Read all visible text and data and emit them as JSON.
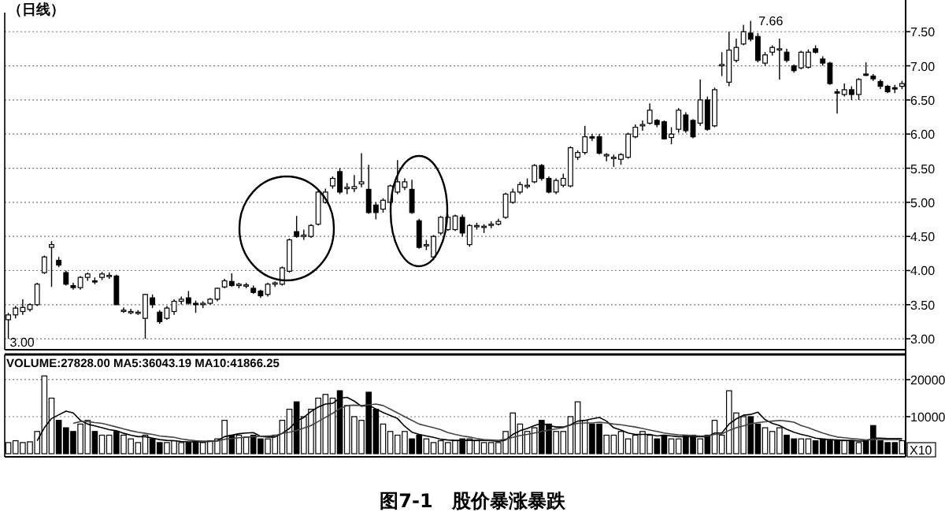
{
  "chart_data": [
    {
      "type": "candlestick",
      "title": "（日线）",
      "categories": [
        null,
        null,
        null,
        null,
        null,
        null,
        null,
        null,
        null,
        null,
        null,
        null,
        null,
        null,
        null,
        null,
        null,
        null,
        null,
        null,
        null,
        null,
        null,
        null,
        null,
        null,
        null,
        null,
        null,
        null,
        null,
        null,
        null,
        null,
        null,
        null,
        null,
        null,
        null,
        null,
        null,
        null,
        null,
        null,
        null,
        null,
        null,
        null,
        null,
        null,
        null,
        null,
        null,
        null,
        null,
        null,
        null,
        null,
        null,
        null,
        null,
        null,
        null,
        null,
        null,
        null,
        null,
        null,
        null,
        null,
        null,
        null,
        null,
        null,
        null,
        null,
        null,
        null,
        null,
        null,
        null,
        null,
        null,
        null,
        null,
        null,
        null,
        null,
        null,
        null,
        null,
        null,
        null,
        null,
        null,
        null,
        null,
        null,
        null,
        null,
        null,
        null,
        null,
        null,
        null,
        null,
        null,
        null,
        null,
        null,
        null,
        null,
        null,
        null,
        null,
        null,
        null,
        null,
        null,
        null,
        null,
        null,
        null,
        null,
        null
      ],
      "ohlc": [
        [
          3.28,
          3.38,
          3.0,
          3.35
        ],
        [
          3.35,
          3.48,
          3.3,
          3.45
        ],
        [
          3.4,
          3.58,
          3.35,
          3.46
        ],
        [
          3.43,
          3.52,
          3.4,
          3.5
        ],
        [
          3.5,
          3.82,
          3.48,
          3.8
        ],
        [
          3.97,
          4.22,
          3.95,
          4.2
        ],
        [
          4.34,
          4.43,
          3.76,
          4.38
        ],
        [
          4.15,
          4.2,
          4.05,
          4.08
        ],
        [
          3.97,
          4.0,
          3.78,
          3.8
        ],
        [
          3.78,
          3.82,
          3.72,
          3.75
        ],
        [
          3.75,
          3.92,
          3.72,
          3.9
        ],
        [
          3.9,
          3.97,
          3.85,
          3.95
        ],
        [
          3.85,
          3.9,
          3.8,
          3.84
        ],
        [
          3.9,
          3.98,
          3.86,
          3.95
        ],
        [
          3.92,
          3.97,
          3.88,
          3.93
        ],
        [
          3.92,
          3.94,
          3.5,
          3.5
        ],
        [
          3.42,
          3.46,
          3.38,
          3.42
        ],
        [
          3.4,
          3.44,
          3.36,
          3.4
        ],
        [
          3.38,
          3.42,
          3.35,
          3.39
        ],
        [
          3.3,
          3.66,
          3.0,
          3.65
        ],
        [
          3.6,
          3.65,
          3.45,
          3.5
        ],
        [
          3.39,
          3.42,
          3.22,
          3.25
        ],
        [
          3.3,
          3.48,
          3.28,
          3.45
        ],
        [
          3.4,
          3.58,
          3.35,
          3.55
        ],
        [
          3.55,
          3.62,
          3.5,
          3.58
        ],
        [
          3.6,
          3.7,
          3.5,
          3.52
        ],
        [
          3.52,
          3.56,
          3.38,
          3.5
        ],
        [
          3.5,
          3.55,
          3.45,
          3.52
        ],
        [
          3.52,
          3.6,
          3.5,
          3.58
        ],
        [
          3.58,
          3.75,
          3.55,
          3.74
        ],
        [
          3.76,
          3.88,
          3.74,
          3.85
        ],
        [
          3.84,
          3.96,
          3.76,
          3.78
        ],
        [
          3.78,
          3.82,
          3.74,
          3.8
        ],
        [
          3.78,
          3.82,
          3.74,
          3.79
        ],
        [
          3.74,
          3.78,
          3.66,
          3.68
        ],
        [
          3.7,
          3.72,
          3.6,
          3.63
        ],
        [
          3.65,
          3.82,
          3.62,
          3.8
        ],
        [
          3.8,
          3.84,
          3.76,
          3.82
        ],
        [
          3.8,
          4.06,
          3.78,
          4.04
        ],
        [
          3.99,
          4.47,
          3.97,
          4.45
        ],
        [
          4.57,
          4.8,
          4.48,
          4.5
        ],
        [
          4.5,
          4.6,
          4.45,
          4.52
        ],
        [
          4.5,
          4.68,
          4.48,
          4.66
        ],
        [
          4.68,
          5.18,
          4.66,
          5.15
        ],
        [
          5.0,
          5.2,
          4.98,
          5.15
        ],
        [
          5.24,
          5.38,
          5.2,
          5.35
        ],
        [
          5.45,
          5.5,
          5.12,
          5.15
        ],
        [
          5.2,
          5.28,
          5.12,
          5.22
        ],
        [
          5.2,
          5.4,
          5.15,
          5.23
        ],
        [
          5.27,
          5.72,
          5.22,
          5.3
        ],
        [
          5.19,
          5.55,
          4.83,
          4.85
        ],
        [
          4.96,
          5.0,
          4.75,
          4.85
        ],
        [
          4.9,
          5.06,
          4.85,
          5.03
        ],
        [
          5.0,
          5.26,
          4.98,
          5.24
        ],
        [
          5.15,
          5.62,
          5.12,
          5.3
        ],
        [
          5.22,
          5.35,
          5.18,
          5.3
        ],
        [
          5.19,
          5.33,
          4.83,
          4.85
        ],
        [
          4.73,
          4.76,
          4.32,
          4.34
        ],
        [
          4.37,
          4.45,
          4.3,
          4.38
        ],
        [
          4.2,
          4.52,
          4.15,
          4.5
        ],
        [
          4.55,
          4.8,
          4.52,
          4.78
        ],
        [
          4.6,
          4.82,
          4.58,
          4.78
        ],
        [
          4.6,
          4.82,
          4.58,
          4.8
        ],
        [
          4.78,
          4.82,
          4.5,
          4.55
        ],
        [
          4.38,
          4.68,
          4.35,
          4.66
        ],
        [
          4.66,
          4.7,
          4.6,
          4.66
        ],
        [
          4.64,
          4.68,
          4.55,
          4.65
        ],
        [
          4.67,
          4.72,
          4.62,
          4.68
        ],
        [
          4.68,
          4.76,
          4.66,
          4.72
        ],
        [
          4.78,
          5.14,
          4.76,
          5.12
        ],
        [
          5.0,
          5.2,
          4.98,
          5.15
        ],
        [
          5.15,
          5.3,
          5.12,
          5.26
        ],
        [
          5.23,
          5.35,
          5.2,
          5.25
        ],
        [
          5.3,
          5.56,
          5.28,
          5.54
        ],
        [
          5.54,
          5.56,
          5.32,
          5.35
        ],
        [
          5.35,
          5.38,
          5.13,
          5.15
        ],
        [
          5.15,
          5.35,
          5.12,
          5.32
        ],
        [
          5.25,
          5.42,
          5.22,
          5.35
        ],
        [
          5.24,
          5.82,
          5.22,
          5.8
        ],
        [
          5.66,
          5.76,
          5.62,
          5.73
        ],
        [
          5.73,
          6.12,
          5.7,
          5.96
        ],
        [
          5.96,
          6.0,
          5.9,
          5.95
        ],
        [
          5.96,
          6.0,
          5.7,
          5.72
        ],
        [
          5.68,
          5.72,
          5.6,
          5.7
        ],
        [
          5.66,
          5.7,
          5.52,
          5.66
        ],
        [
          5.63,
          5.72,
          5.55,
          5.7
        ],
        [
          5.66,
          6.02,
          5.64,
          6.0
        ],
        [
          5.96,
          6.14,
          5.94,
          6.1
        ],
        [
          6.12,
          6.2,
          6.05,
          6.14
        ],
        [
          6.16,
          6.45,
          6.14,
          6.35
        ],
        [
          6.2,
          6.22,
          6.1,
          6.14
        ],
        [
          6.18,
          6.2,
          5.92,
          5.93
        ],
        [
          5.95,
          6.1,
          5.85,
          6.0
        ],
        [
          6.07,
          6.38,
          6.02,
          6.35
        ],
        [
          6.28,
          6.32,
          6.02,
          6.05
        ],
        [
          6.2,
          6.22,
          5.94,
          5.96
        ],
        [
          6.16,
          6.8,
          6.12,
          6.5
        ],
        [
          6.5,
          6.55,
          6.05,
          6.07
        ],
        [
          6.12,
          6.68,
          6.1,
          6.65
        ],
        [
          7.0,
          7.2,
          6.85,
          7.02
        ],
        [
          6.76,
          7.5,
          6.7,
          7.23
        ],
        [
          7.08,
          7.4,
          7.05,
          7.27
        ],
        [
          7.32,
          7.6,
          7.3,
          7.5
        ],
        [
          7.48,
          7.66,
          7.36,
          7.39
        ],
        [
          7.43,
          7.48,
          7.05,
          7.08
        ],
        [
          7.04,
          7.2,
          7.0,
          7.16
        ],
        [
          7.2,
          7.3,
          7.15,
          7.27
        ],
        [
          7.24,
          7.4,
          6.8,
          7.25
        ],
        [
          7.2,
          7.25,
          7.05,
          7.08
        ],
        [
          7.0,
          7.02,
          6.9,
          6.93
        ],
        [
          6.97,
          7.22,
          6.95,
          7.2
        ],
        [
          6.98,
          7.24,
          6.96,
          7.2
        ],
        [
          7.25,
          7.3,
          7.18,
          7.2
        ],
        [
          7.1,
          7.14,
          7.0,
          7.04
        ],
        [
          7.04,
          7.06,
          6.72,
          6.74
        ],
        [
          6.62,
          6.66,
          6.3,
          6.6
        ],
        [
          6.58,
          6.74,
          6.55,
          6.65
        ],
        [
          6.65,
          6.7,
          6.5,
          6.58
        ],
        [
          6.58,
          6.82,
          6.5,
          6.8
        ],
        [
          6.88,
          7.05,
          6.85,
          6.86
        ],
        [
          6.85,
          6.88,
          6.78,
          6.81
        ],
        [
          6.77,
          6.8,
          6.66,
          6.7
        ],
        [
          6.7,
          6.72,
          6.6,
          6.62
        ],
        [
          6.68,
          6.72,
          6.6,
          6.66
        ],
        [
          6.7,
          6.78,
          6.66,
          6.74
        ]
      ],
      "ylim": [
        2.84,
        7.78
      ],
      "yticks": [
        {
          "value": 3,
          "label": "3.00"
        },
        {
          "value": 3.5,
          "label": "3.50"
        },
        {
          "value": 4,
          "label": "4.00"
        },
        {
          "value": 4.5,
          "label": "4.50"
        },
        {
          "value": 5,
          "label": "5.00"
        },
        {
          "value": 5.5,
          "label": "5.50"
        },
        {
          "value": 6,
          "label": "6.00"
        },
        {
          "value": 6.5,
          "label": "6.50"
        },
        {
          "value": 7,
          "label": "7.00"
        },
        {
          "value": 7.5,
          "label": "7.50"
        }
      ],
      "grid": "y",
      "tick_labels": "y",
      "annotations": [
        "7.66",
        "3.00"
      ]
    },
    {
      "type": "bar",
      "title": "VOLUME:27828.00 MA5:36043.19 MA10:41866.25",
      "categories": [
        null,
        null,
        null,
        null,
        null,
        null,
        null,
        null,
        null,
        null,
        null,
        null,
        null,
        null,
        null,
        null,
        null,
        null,
        null,
        null,
        null,
        null,
        null,
        null,
        null,
        null,
        null,
        null,
        null,
        null,
        null,
        null,
        null,
        null,
        null,
        null,
        null,
        null,
        null,
        null,
        null,
        null,
        null,
        null,
        null,
        null,
        null,
        null,
        null,
        null,
        null,
        null,
        null,
        null,
        null,
        null,
        null,
        null,
        null,
        null,
        null,
        null,
        null,
        null,
        null,
        null,
        null,
        null,
        null,
        null,
        null,
        null,
        null,
        null,
        null,
        null,
        null,
        null,
        null,
        null,
        null,
        null,
        null,
        null,
        null,
        null,
        null,
        null,
        null,
        null,
        null,
        null,
        null,
        null,
        null,
        null,
        null,
        null,
        null,
        null,
        null,
        null,
        null,
        null,
        null,
        null,
        null,
        null,
        null,
        null,
        null,
        null,
        null,
        null,
        null,
        null,
        null,
        null,
        null,
        null,
        null,
        null,
        null,
        null,
        null
      ],
      "series": [
        {
          "values": [
            3000,
            3500,
            3000,
            3200,
            6000,
            21000,
            15000,
            9000,
            7000,
            6000,
            8000,
            9000,
            6000,
            5000,
            5000,
            6000,
            5000,
            4000,
            3000,
            5000,
            4000,
            3000,
            3000,
            3500,
            3000,
            3000,
            3500,
            3000,
            3500,
            4000,
            9000,
            5000,
            5000,
            4500,
            5000,
            4000,
            4000,
            5000,
            9000,
            12000,
            14000,
            10000,
            12000,
            15000,
            16000,
            15000,
            17000,
            13000,
            10000,
            9000,
            16600,
            12000,
            8000,
            6000,
            5000,
            6000,
            4000,
            5000,
            4000,
            3000,
            3500,
            3000,
            3500,
            4000,
            4000,
            3500,
            3000,
            3000,
            3000,
            6000,
            11000,
            8000,
            6000,
            7000,
            9000,
            8000,
            6000,
            6000,
            10000,
            14000,
            9000,
            8000,
            8000,
            5000,
            5000,
            6000,
            4000,
            5000,
            6000,
            5000,
            4000,
            5000,
            4000,
            4000,
            5000,
            5000,
            4000,
            5000,
            9000,
            5000,
            17000,
            11000,
            10000,
            10000,
            8000,
            7000,
            6000,
            7000,
            5000,
            4000,
            4000,
            4000,
            3500,
            4000,
            3500,
            3500,
            3500,
            3500,
            3000,
            3500,
            7600,
            3500,
            3000,
            3000,
            3500
          ],
          "colors": [
            "#ffffff",
            "#ffffff",
            "#ffffff",
            "#ffffff",
            "#ffffff",
            "#ffffff",
            "#ffffff",
            "#000000",
            "#000000",
            "#000000",
            "#ffffff",
            "#ffffff",
            "#000000",
            "#ffffff",
            "#ffffff",
            "#000000",
            "#ffffff",
            "#ffffff",
            "#ffffff",
            "#ffffff",
            "#000000",
            "#000000",
            "#ffffff",
            "#ffffff",
            "#ffffff",
            "#000000",
            "#000000",
            "#ffffff",
            "#ffffff",
            "#ffffff",
            "#ffffff",
            "#000000",
            "#ffffff",
            "#ffffff",
            "#000000",
            "#000000",
            "#ffffff",
            "#ffffff",
            "#ffffff",
            "#ffffff",
            "#000000",
            "#ffffff",
            "#ffffff",
            "#ffffff",
            "#ffffff",
            "#ffffff",
            "#000000",
            "#ffffff",
            "#ffffff",
            "#ffffff",
            "#000000",
            "#000000",
            "#ffffff",
            "#ffffff",
            "#ffffff",
            "#ffffff",
            "#000000",
            "#000000",
            "#ffffff",
            "#ffffff",
            "#ffffff",
            "#ffffff",
            "#ffffff",
            "#000000",
            "#ffffff",
            "#ffffff",
            "#ffffff",
            "#ffffff",
            "#ffffff",
            "#ffffff",
            "#ffffff",
            "#ffffff",
            "#ffffff",
            "#ffffff",
            "#000000",
            "#000000",
            "#ffffff",
            "#ffffff",
            "#ffffff",
            "#ffffff",
            "#ffffff",
            "#000000",
            "#000000",
            "#ffffff",
            "#ffffff",
            "#ffffff",
            "#ffffff",
            "#ffffff",
            "#ffffff",
            "#ffffff",
            "#000000",
            "#000000",
            "#ffffff",
            "#ffffff",
            "#000000",
            "#000000",
            "#ffffff",
            "#000000",
            "#ffffff",
            "#ffffff",
            "#ffffff",
            "#ffffff",
            "#ffffff",
            "#000000",
            "#000000",
            "#ffffff",
            "#ffffff",
            "#ffffff",
            "#000000",
            "#000000",
            "#ffffff",
            "#ffffff",
            "#000000",
            "#000000",
            "#000000",
            "#000000",
            "#ffffff",
            "#000000",
            "#ffffff",
            "#000000",
            "#000000",
            "#000000",
            "#000000",
            "#000000",
            "#ffffff"
          ]
        },
        {
          "type": "line",
          "color": "#000000",
          "values": [
            null,
            null,
            null,
            null,
            3500,
            7000,
            9500,
            10500,
            11500,
            11000,
            9000,
            8000,
            7500,
            7000,
            6500,
            6200,
            5500,
            5000,
            4600,
            4600,
            4200,
            3800,
            3600,
            3500,
            3300,
            3200,
            3200,
            3200,
            3300,
            3500,
            4600,
            5000,
            5400,
            5600,
            5700,
            4700,
            4500,
            4500,
            5500,
            6800,
            8800,
            9800,
            11400,
            12600,
            13400,
            13600,
            15000,
            15200,
            14200,
            12800,
            13100,
            12100,
            11100,
            10300,
            9500,
            7400,
            5800,
            5200,
            4800,
            4400,
            3900,
            3700,
            3600,
            3600,
            3600,
            3600,
            3600,
            3500,
            3300,
            3700,
            5200,
            6200,
            6800,
            7600,
            8200,
            7600,
            7200,
            7200,
            7800,
            8800,
            9000,
            9400,
            9800,
            8800,
            7000,
            6400,
            5600,
            5200,
            5200,
            5200,
            4800,
            5000,
            4800,
            4600,
            4600,
            4600,
            4600,
            4600,
            5600,
            5600,
            8000,
            9400,
            10400,
            10600,
            11200,
            9200,
            8200,
            7600,
            6600,
            5800,
            5200,
            4800,
            4200,
            3900,
            3800,
            3700,
            3600,
            3600,
            3400,
            3400,
            4200,
            4200,
            4100,
            4100,
            4100
          ]
        },
        {
          "type": "line",
          "color": "#444444",
          "values": [
            null,
            null,
            null,
            null,
            null,
            null,
            null,
            null,
            null,
            8200,
            8700,
            8700,
            8400,
            8200,
            7700,
            7200,
            6700,
            6200,
            5800,
            5500,
            5200,
            4800,
            4600,
            4400,
            4000,
            3700,
            3500,
            3400,
            3400,
            3400,
            3900,
            4100,
            4300,
            4400,
            4600,
            4700,
            4800,
            4900,
            5500,
            5800,
            6300,
            6900,
            7600,
            8700,
            9800,
            10900,
            12200,
            13000,
            13100,
            13000,
            13200,
            13400,
            13000,
            12000,
            11000,
            10000,
            9000,
            8000,
            7500,
            7000,
            6500,
            5700,
            5200,
            4800,
            4500,
            4100,
            3800,
            3700,
            3600,
            3900,
            4400,
            4900,
            5200,
            5600,
            6000,
            6400,
            6700,
            7000,
            7700,
            8200,
            8300,
            8300,
            8500,
            8300,
            8000,
            7800,
            7500,
            7200,
            6800,
            6400,
            6000,
            5600,
            5300,
            5100,
            5000,
            4900,
            4800,
            4800,
            5200,
            5300,
            6300,
            7000,
            7500,
            8100,
            8400,
            8600,
            8800,
            9000,
            8800,
            8500,
            7600,
            7000,
            6300,
            5600,
            5000,
            4500,
            4300,
            4100,
            3900,
            3700,
            3900,
            3900,
            3800,
            3800,
            3800
          ]
        }
      ],
      "ylim": [
        0,
        26800
      ],
      "yticks": [
        10000,
        20000
      ],
      "grid": "y",
      "tick_labels": "y",
      "annotations": [
        "X10",
        "图7-1　股价暴涨暴跌"
      ]
    }
  ]
}
